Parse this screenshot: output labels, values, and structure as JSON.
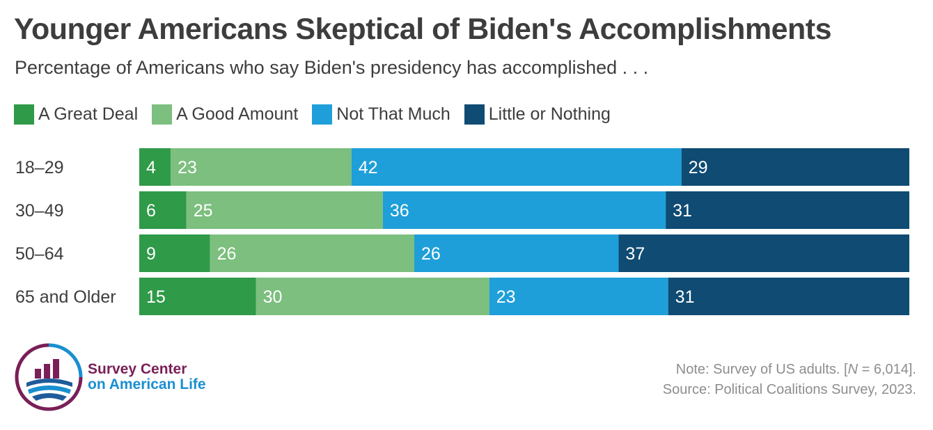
{
  "title": "Younger Americans Skeptical of Biden's Accomplishments",
  "subtitle": "Percentage of Americans who say Biden's presidency has accomplished . . .",
  "chart_data": {
    "type": "bar",
    "orientation": "horizontal",
    "stacked": true,
    "categories": [
      "18–29",
      "30–49",
      "50–64",
      "65 and Older"
    ],
    "series": [
      {
        "name": "A Great Deal",
        "color": "#2f9a48",
        "values": [
          4,
          6,
          9,
          15
        ]
      },
      {
        "name": "A Good Amount",
        "color": "#7cbf7e",
        "values": [
          23,
          25,
          26,
          30
        ]
      },
      {
        "name": "Not That Much",
        "color": "#1f9fd9",
        "values": [
          42,
          36,
          26,
          23
        ]
      },
      {
        "name": "Little or Nothing",
        "color": "#0f4b73",
        "values": [
          29,
          31,
          37,
          31
        ]
      }
    ],
    "data_labels": true,
    "legend_position": "top-left",
    "grid": false
  },
  "logo": {
    "line1": "Survey Center",
    "line2": "on American Life",
    "brand_colors": [
      "#7a1f57",
      "#1a8fd0",
      "#1f5b9a"
    ]
  },
  "note": {
    "prefix": "Note: Survey of US adults. [",
    "n_symbol": "N",
    "suffix": " = 6,014].",
    "source": "Source: Political Coalitions Survey, 2023."
  }
}
